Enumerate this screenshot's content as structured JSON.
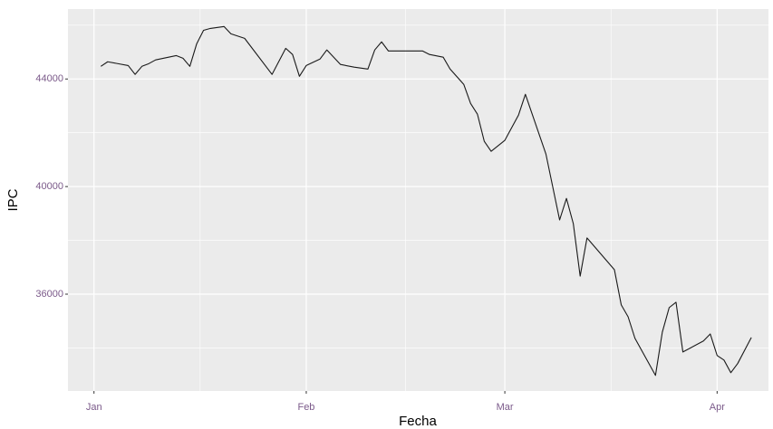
{
  "chart_data": {
    "type": "line",
    "x_label": "Fecha",
    "y_label": "IPC",
    "x": [
      2,
      3,
      6,
      7,
      8,
      9,
      10,
      13,
      14,
      15,
      16,
      17,
      18,
      20,
      21,
      23,
      27,
      29,
      30,
      31,
      32,
      34,
      35,
      37,
      39,
      41,
      42,
      43,
      44,
      49,
      50,
      52,
      53,
      55,
      56,
      57,
      58,
      59,
      61,
      63,
      64,
      67,
      69,
      70,
      71,
      72,
      73,
      77,
      78,
      79,
      80,
      83,
      84,
      85,
      86,
      87,
      90,
      91,
      92,
      93,
      94,
      95,
      97
    ],
    "values": [
      44470,
      44640,
      44500,
      44170,
      44470,
      44570,
      44710,
      44870,
      44770,
      44470,
      45310,
      45810,
      45880,
      45950,
      45680,
      45510,
      44170,
      45140,
      44910,
      44100,
      44500,
      44740,
      45080,
      44540,
      44440,
      44370,
      45080,
      45380,
      45040,
      45040,
      44910,
      44810,
      44370,
      43800,
      43090,
      42690,
      41680,
      41310,
      41720,
      42660,
      43430,
      41210,
      38760,
      39560,
      38620,
      36670,
      38090,
      36910,
      35600,
      35160,
      34360,
      32980,
      34590,
      35500,
      35700,
      33850,
      34260,
      34520,
      33720,
      33550,
      33080,
      33420,
      34390
    ],
    "color": "#1a1a1a",
    "xlim": [
      -2.8,
      99.5
    ],
    "xticks": [
      {
        "value": 1,
        "label": "Jan"
      },
      {
        "value": 32,
        "label": "Feb"
      },
      {
        "value": 61,
        "label": "Mar"
      },
      {
        "value": 92,
        "label": "Apr"
      }
    ],
    "ylim": [
      32400,
      46600
    ],
    "yticks": [
      36000,
      40000,
      44000
    ],
    "grid": true
  }
}
